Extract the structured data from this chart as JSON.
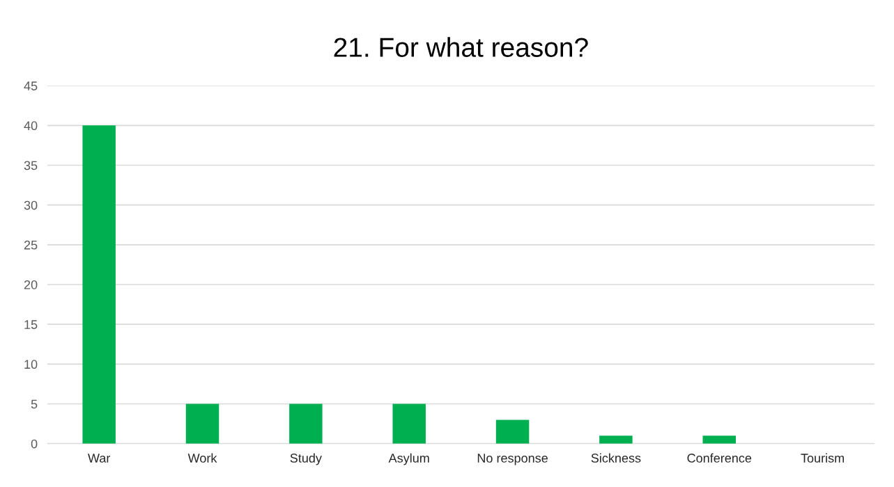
{
  "chart_data": {
    "type": "bar",
    "title": "21. For what reason?",
    "categories": [
      "War",
      "Work",
      "Study",
      "Asylum",
      "No response",
      "Sickness",
      "Conference",
      "Tourism"
    ],
    "values": [
      40,
      5,
      5,
      5,
      3,
      1,
      1,
      0
    ],
    "color": "#00b050",
    "ylim": [
      0,
      45
    ],
    "yticks": [
      0,
      5,
      10,
      15,
      20,
      25,
      30,
      35,
      40,
      45
    ],
    "grid": "y",
    "legend": false
  }
}
